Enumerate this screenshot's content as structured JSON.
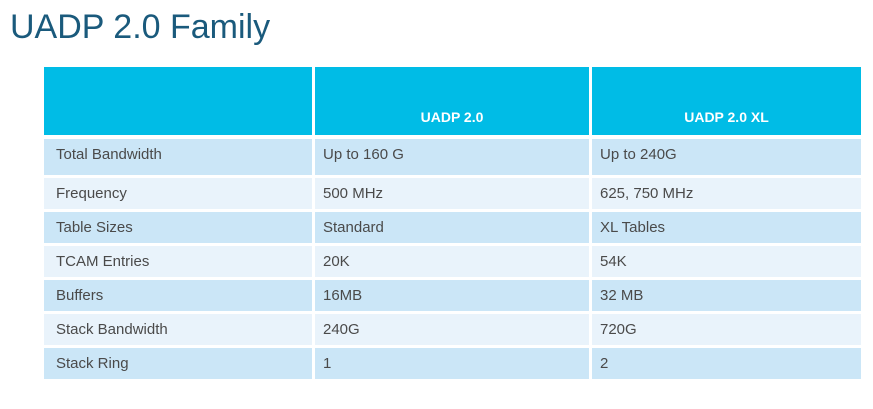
{
  "title": "UADP 2.0 Family",
  "colors": {
    "title_text": "#1A5A7C",
    "header_bg": "#00BCE6",
    "header_text": "#FFFFFF",
    "row_shade_a": "#CBE6F7",
    "row_shade_b": "#E9F3FB",
    "body_text": "#4A4A4A",
    "page_bg": "#FFFFFF"
  },
  "table": {
    "columns": [
      "",
      "UADP 2.0",
      "UADP 2.0 XL"
    ],
    "rows": [
      {
        "label": "Total Bandwidth",
        "uadp20": "Up to 160 G",
        "uadp20xl": "Up to 240G"
      },
      {
        "label": "Frequency",
        "uadp20": "500 MHz",
        "uadp20xl": "625, 750 MHz"
      },
      {
        "label": "Table Sizes",
        "uadp20": "Standard",
        "uadp20xl": "XL Tables"
      },
      {
        "label": "TCAM Entries",
        "uadp20": "20K",
        "uadp20xl": "54K"
      },
      {
        "label": "Buffers",
        "uadp20": "16MB",
        "uadp20xl": "32 MB"
      },
      {
        "label": "Stack Bandwidth",
        "uadp20": "240G",
        "uadp20xl": "720G"
      },
      {
        "label": "Stack Ring",
        "uadp20": "1",
        "uadp20xl": "2"
      }
    ]
  }
}
